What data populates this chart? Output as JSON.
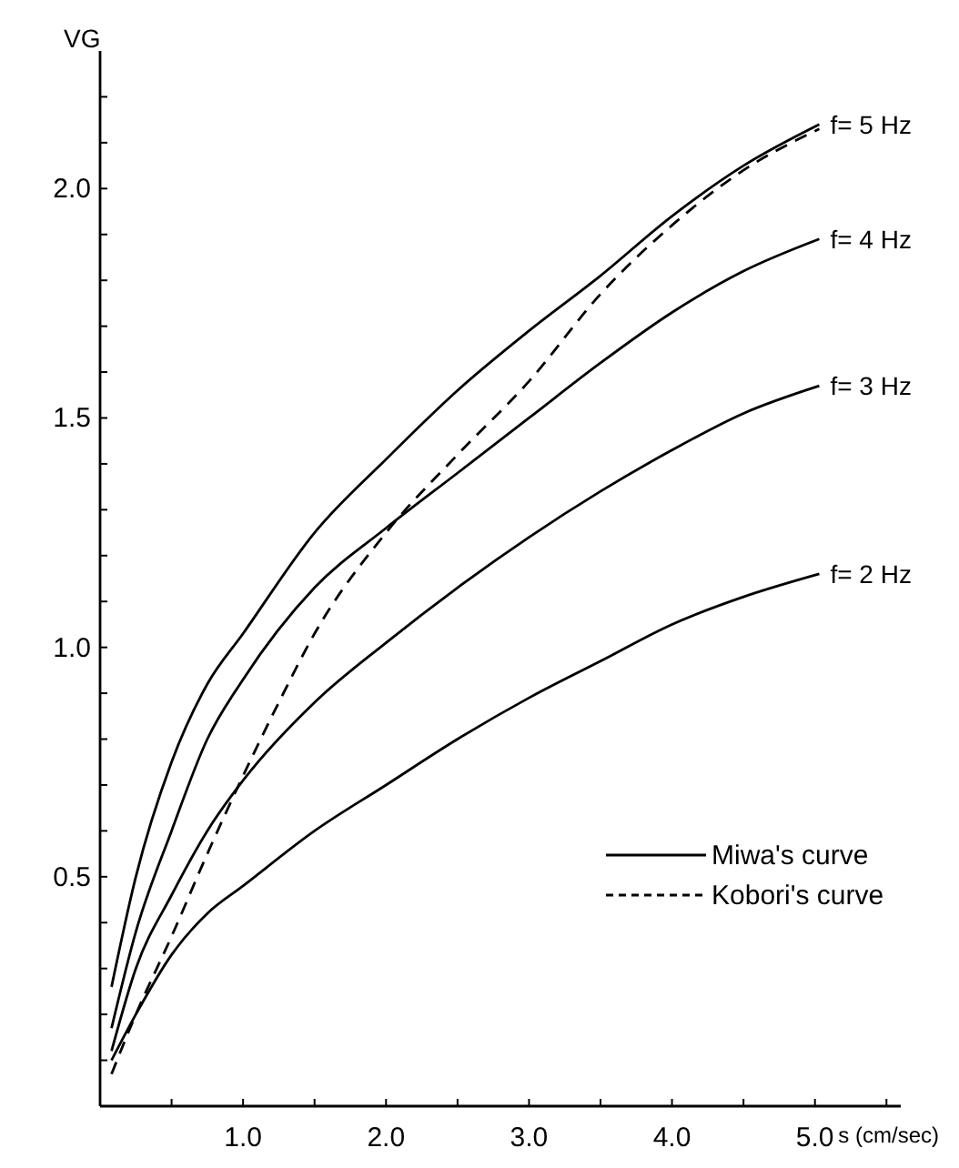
{
  "chart_data": {
    "type": "line",
    "xlabel": "s (cm/sec)",
    "ylabel": "VG",
    "xlim": [
      0,
      5.6
    ],
    "ylim": [
      0,
      2.3
    ],
    "xticks": [
      {
        "value": 0.5,
        "label": null
      },
      {
        "value": 1,
        "label": "1.0"
      },
      {
        "value": 1.5,
        "label": null
      },
      {
        "value": 2,
        "label": "2.0"
      },
      {
        "value": 2.5,
        "label": null
      },
      {
        "value": 3,
        "label": "3.0"
      },
      {
        "value": 3.5,
        "label": null
      },
      {
        "value": 4,
        "label": "4.0"
      },
      {
        "value": 4.5,
        "label": null
      },
      {
        "value": 5,
        "label": "5.0"
      },
      {
        "value": 5.5,
        "label": null
      }
    ],
    "yticks": [
      {
        "value": 0.1,
        "label": null
      },
      {
        "value": 0.2,
        "label": null
      },
      {
        "value": 0.3,
        "label": null
      },
      {
        "value": 0.4,
        "label": null
      },
      {
        "value": 0.5,
        "label": "0.5"
      },
      {
        "value": 0.6,
        "label": null
      },
      {
        "value": 0.7,
        "label": null
      },
      {
        "value": 0.8,
        "label": null
      },
      {
        "value": 0.9,
        "label": null
      },
      {
        "value": 1,
        "label": "1.0"
      },
      {
        "value": 1.1,
        "label": null
      },
      {
        "value": 1.2,
        "label": null
      },
      {
        "value": 1.3,
        "label": null
      },
      {
        "value": 1.4,
        "label": null
      },
      {
        "value": 1.5,
        "label": "1.5"
      },
      {
        "value": 1.6,
        "label": null
      },
      {
        "value": 1.7,
        "label": null
      },
      {
        "value": 1.8,
        "label": null
      },
      {
        "value": 1.9,
        "label": null
      },
      {
        "value": 2,
        "label": "2.0"
      },
      {
        "value": 2.1,
        "label": null
      },
      {
        "value": 2.2,
        "label": null
      }
    ],
    "grid": false,
    "legend": "right",
    "marker": "none",
    "annotations": [
      "Miwa's curve"
    ],
    "series": [
      {
        "name": "f= 5 Hz",
        "color": "#000000",
        "line_style": "solid",
        "x": [
          0.08,
          0.25,
          0.5,
          0.75,
          1.0,
          1.5,
          2.0,
          2.5,
          3.0,
          3.5,
          4.0,
          4.5,
          5.03
        ],
        "values": [
          0.26,
          0.5,
          0.75,
          0.92,
          1.03,
          1.25,
          1.41,
          1.56,
          1.69,
          1.81,
          1.94,
          2.05,
          2.14
        ]
      },
      {
        "name": "f= 4 Hz",
        "color": "#000000",
        "line_style": "solid",
        "x": [
          0.08,
          0.25,
          0.5,
          0.75,
          1.0,
          1.5,
          2.0,
          2.5,
          3.0,
          3.5,
          4.0,
          4.5,
          5.03
        ],
        "values": [
          0.17,
          0.38,
          0.6,
          0.8,
          0.93,
          1.13,
          1.26,
          1.38,
          1.5,
          1.62,
          1.73,
          1.82,
          1.89
        ]
      },
      {
        "name": "f= 3 Hz",
        "color": "#000000",
        "line_style": "solid",
        "x": [
          0.08,
          0.25,
          0.5,
          0.75,
          1.0,
          1.5,
          2.0,
          2.5,
          3.0,
          3.5,
          4.0,
          4.5,
          5.03
        ],
        "values": [
          0.12,
          0.3,
          0.46,
          0.6,
          0.71,
          0.88,
          1.01,
          1.13,
          1.24,
          1.34,
          1.43,
          1.51,
          1.57
        ]
      },
      {
        "name": "f= 2 Hz",
        "color": "#000000",
        "line_style": "solid",
        "x": [
          0.08,
          0.25,
          0.5,
          0.75,
          1.0,
          1.5,
          2.0,
          2.5,
          3.0,
          3.5,
          4.0,
          4.5,
          5.03
        ],
        "values": [
          0.1,
          0.2,
          0.33,
          0.42,
          0.48,
          0.6,
          0.7,
          0.8,
          0.89,
          0.97,
          1.05,
          1.11,
          1.16
        ]
      },
      {
        "name": "Kobori's curve",
        "color": "#000000",
        "line_style": "dashed",
        "x": [
          0.08,
          0.25,
          0.5,
          0.75,
          1.0,
          1.25,
          1.5,
          2.0,
          2.5,
          3.0,
          3.5,
          4.0,
          4.5,
          5.03
        ],
        "values": [
          0.07,
          0.2,
          0.37,
          0.55,
          0.72,
          0.88,
          1.03,
          1.25,
          1.42,
          1.58,
          1.77,
          1.92,
          2.04,
          2.13
        ]
      }
    ]
  }
}
